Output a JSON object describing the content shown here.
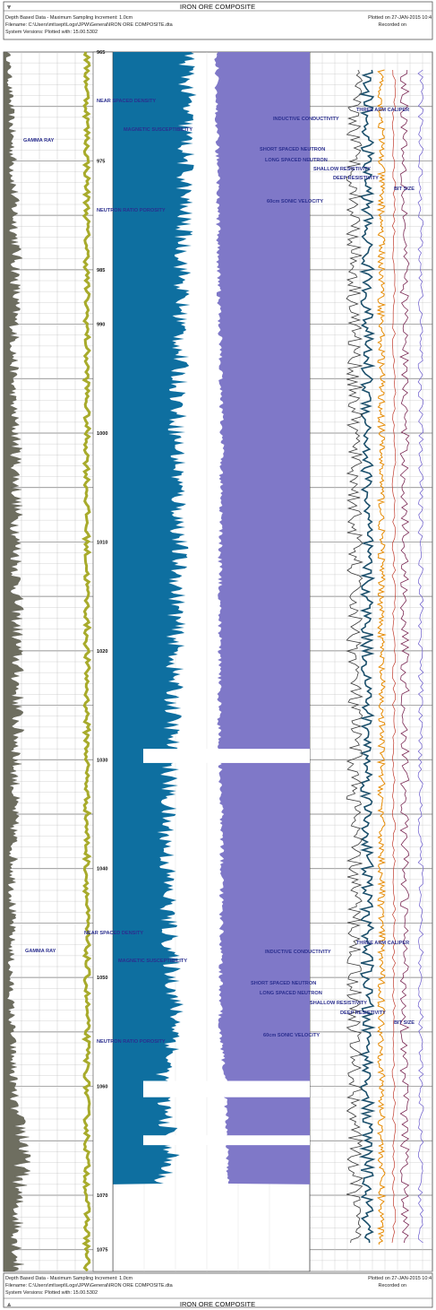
{
  "header": {
    "title": "IRON ORE COMPOSITE",
    "line1_left": "Depth Based Data - Maximum Sampling Increment: 1.0cm",
    "line2_left": "Filename: C:\\Users\\mt\\sept\\Logs\\JPW\\General\\IRON ORE COMPOSITE.dta",
    "line3_left": "System Versions:   Plotted with: 15.00.5302",
    "plotted_on": "Plotted on 27-JAN-2015 10:4",
    "recorded_on": "Recorded on"
  },
  "footer": {
    "title": "IRON ORE COMPOSITE",
    "line1_left": "Depth Based Data - Maximum Sampling Increment: 1.0cm",
    "line2_left": "Filename: C:\\Users\\mt\\sept\\Logs\\JPW\\General\\IRON ORE COMPOSITE.dta",
    "line3_left": "System Versions:   Plotted with: 15.00.5302",
    "plotted_on": "Plotted on 27-JAN-2015 10:4",
    "recorded_on": "Recorded on"
  },
  "chart_data": {
    "type": "well-log",
    "depth_axis": {
      "range": [
        965,
        1077
      ],
      "tick_labels": [
        "965",
        "975",
        "985",
        "990",
        "1000",
        "1010",
        "1020",
        "1030",
        "1040",
        "1050",
        "1060",
        "1070",
        "1075"
      ],
      "tick_depths": [
        965,
        975,
        985,
        990,
        1000,
        1010,
        1020,
        1030,
        1040,
        1050,
        1060,
        1070,
        1075
      ],
      "grid": true
    },
    "curve_labels_top": {
      "gamma_ray": "GAMMA RAY",
      "near_density": "NEAR SPACED DENSITY",
      "mag_susc": "MAGNETIC SUSCEPTIBILITY",
      "neutron_ratio": "NEUTRON RATIO POROSITY",
      "caliper": "THREE ARM CALIPER",
      "inductive": "INDUCTIVE CONDUCTIVITY",
      "short_neutron": "SHORT SPACED NEUTRON",
      "long_neutron": "LONG SPACED NEUTRON",
      "shallow_res": "SHALLOW RESISTIVITY",
      "deep_res": "DEEP RESISTIVITY",
      "bit_size": "BIT SIZE",
      "sonic": "60cm SONIC VELOCITY"
    },
    "curve_labels_bottom": {
      "gamma_ray": "GAMMA RAY",
      "near_density": "NEAR SPACED DENSITY",
      "mag_susc": "MAGNETIC SUSCEPTIBILITY",
      "neutron_ratio": "NEUTRON RATIO POROSITY",
      "caliper": "THREE ARM CALIPER",
      "inductive": "INDUCTIVE CONDUCTIVITY",
      "short_neutron": "SHORT SPACED NEUTRON",
      "long_neutron": "LONG SPACED NEUTRON",
      "shallow_res": "SHALLOW RESISTIVITY",
      "deep_res": "DEEP RESISTIVITY",
      "bit_size": "BIT SIZE",
      "sonic": "60cm SONIC VELOCITY"
    },
    "series": [
      {
        "name": "GAMMA RAY",
        "fill": "#6e6e60",
        "depth": [
          965,
          972,
          984,
          997,
          1001,
          1029,
          1031,
          1046,
          1050,
          1062,
          1064,
          1066,
          1070
        ],
        "value": [
          0.2,
          0.35,
          0.55,
          0.4,
          0.55,
          0.6,
          0.5,
          0.35,
          0.3,
          0.45,
          0.8,
          0.95,
          0.6
        ]
      },
      {
        "name": "NEAR SPACED DENSITY",
        "fill": "#0e6fa0",
        "depth": [
          965,
          985,
          1000,
          1010,
          1028,
          1036,
          1045,
          1055,
          1060,
          1066,
          1070
        ],
        "value": [
          0.7,
          0.65,
          0.6,
          0.62,
          0.55,
          0.5,
          0.52,
          0.6,
          0.45,
          0.55,
          0.4
        ]
      },
      {
        "name": "NEUTRON RATIO POROSITY",
        "fill": "#7f78c8",
        "depth": [
          965,
          985,
          1000,
          1010,
          1028,
          1036,
          1045,
          1055,
          1060,
          1066
        ],
        "value": [
          0.85,
          0.8,
          0.7,
          0.75,
          0.78,
          0.7,
          0.72,
          0.75,
          0.6,
          0.55
        ]
      }
    ]
  }
}
